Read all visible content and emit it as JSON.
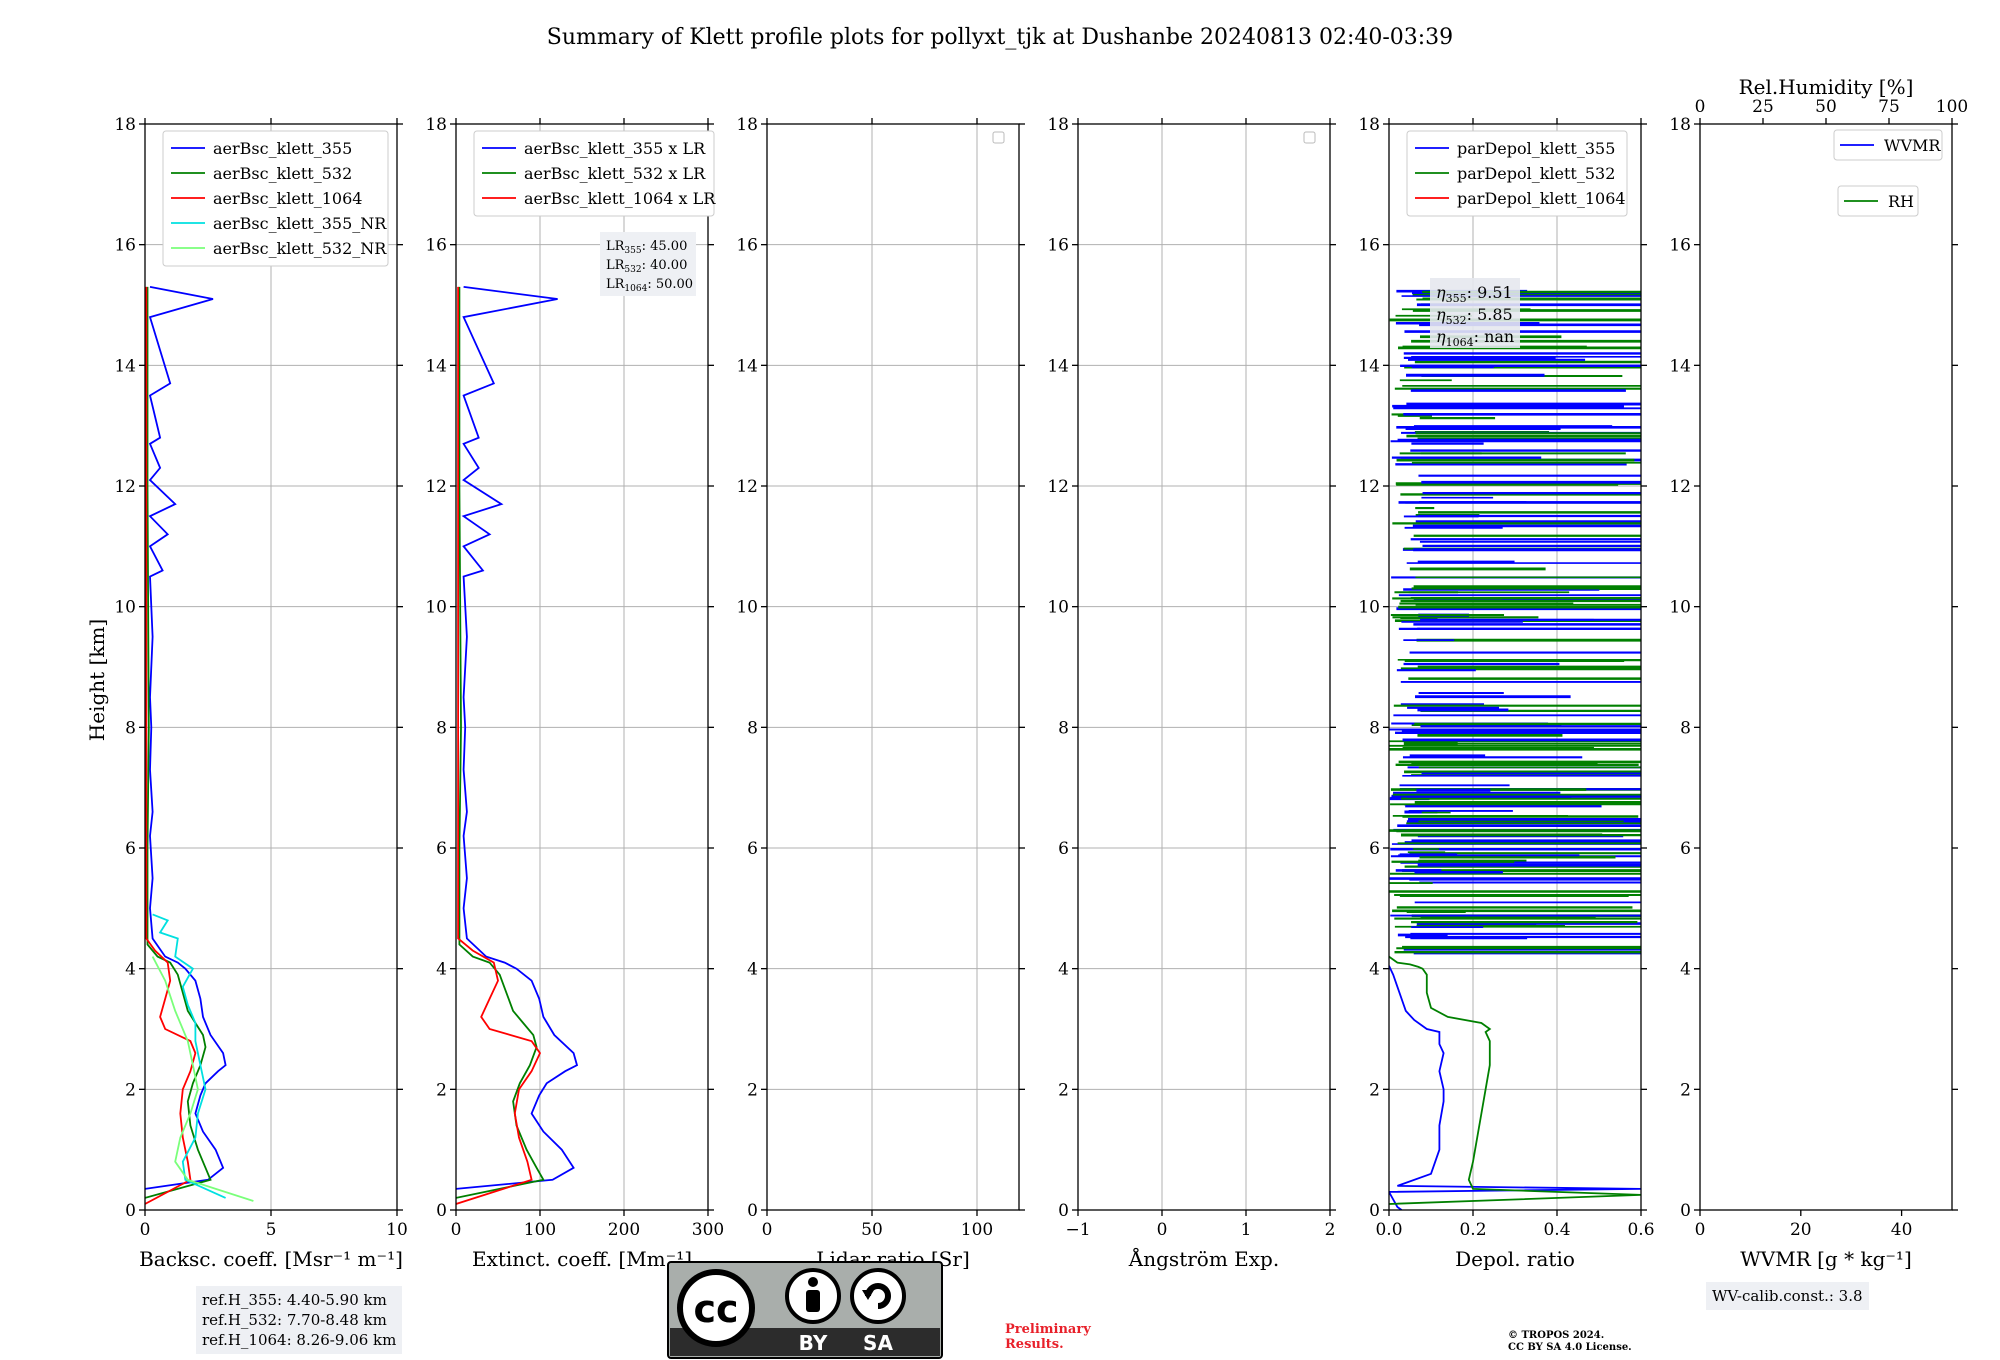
{
  "title": "Summary of Klett profile plots for pollyxt_tjk at Dushanbe 20240813 02:40-03:39",
  "chart_data": [
    {
      "type": "line",
      "xlabel": "Backsc. coeff. [Msr⁻¹ m⁻¹]",
      "ylabel": "Height [km]",
      "xlim": [
        0,
        10
      ],
      "ylim": [
        0,
        18
      ],
      "xticks": [
        "0",
        "5",
        "10"
      ],
      "yticks": [
        "0",
        "2",
        "4",
        "6",
        "8",
        "10",
        "12",
        "14",
        "16",
        "18"
      ],
      "grid": true,
      "legend_position": "top",
      "series": [
        {
          "name": "aerBsc_klett_355",
          "color": "#0000ff",
          "x": [
            0.0,
            2.5,
            3.1,
            2.8,
            2.3,
            2.0,
            2.2,
            2.4,
            2.9,
            3.2,
            3.1,
            2.6,
            2.3,
            2.2,
            2.0,
            1.6,
            1.3,
            0.8,
            0.3,
            0.2,
            0.3,
            0.2,
            0.3,
            0.2,
            0.25,
            0.2,
            0.3,
            0.2,
            0.7,
            0.2,
            0.9,
            0.2,
            1.2,
            0.2,
            0.6,
            0.2,
            0.6,
            0.2,
            1.0,
            0.2,
            2.7,
            0.2
          ],
          "y": [
            0.35,
            0.5,
            0.7,
            1.0,
            1.3,
            1.6,
            1.9,
            2.1,
            2.3,
            2.4,
            2.6,
            2.9,
            3.2,
            3.5,
            3.8,
            4.0,
            4.1,
            4.2,
            4.5,
            5.0,
            5.5,
            6.2,
            6.6,
            7.3,
            8.0,
            8.5,
            9.5,
            10.5,
            10.6,
            11.0,
            11.2,
            11.5,
            11.7,
            12.1,
            12.3,
            12.7,
            12.8,
            13.5,
            13.7,
            14.8,
            15.1,
            15.3
          ]
        },
        {
          "name": "aerBsc_klett_532",
          "color": "#008000",
          "x": [
            0.0,
            2.6,
            2.4,
            2.1,
            1.8,
            1.7,
            1.9,
            2.2,
            2.4,
            2.3,
            2.0,
            1.7,
            1.5,
            1.3,
            1.0,
            0.5,
            0.1,
            0.1,
            0.15,
            0.1,
            0.1
          ],
          "y": [
            0.2,
            0.5,
            0.7,
            1.0,
            1.4,
            1.8,
            2.1,
            2.4,
            2.7,
            2.9,
            3.1,
            3.3,
            3.6,
            3.9,
            4.1,
            4.2,
            4.4,
            6.0,
            8.0,
            12.0,
            15.3
          ]
        },
        {
          "name": "aerBsc_klett_1064",
          "color": "#ff0000",
          "x": [
            0.0,
            1.8,
            1.7,
            1.5,
            1.4,
            1.5,
            1.8,
            2.0,
            1.8,
            0.8,
            0.6,
            0.8,
            1.0,
            0.9,
            0.4,
            0.05,
            0.05,
            0.05
          ],
          "y": [
            0.1,
            0.5,
            0.8,
            1.2,
            1.6,
            2.0,
            2.3,
            2.6,
            2.8,
            3.0,
            3.2,
            3.5,
            3.8,
            4.1,
            4.3,
            4.5,
            10.0,
            15.3
          ]
        },
        {
          "name": "aerBsc_klett_355_NR",
          "color": "#00e0e0",
          "x": [
            3.2,
            1.6,
            1.5,
            2.0,
            2.1,
            2.4,
            2.2,
            2.0,
            2.0,
            1.7,
            1.5,
            1.9,
            1.2,
            1.3,
            0.6,
            0.9,
            0.3
          ],
          "y": [
            0.2,
            0.5,
            0.8,
            1.2,
            1.6,
            2.0,
            2.4,
            2.8,
            3.1,
            3.4,
            3.7,
            4.0,
            4.2,
            4.5,
            4.6,
            4.8,
            4.9
          ]
        },
        {
          "name": "aerBsc_klett_532_NR",
          "color": "#7aff7a",
          "x": [
            4.3,
            1.7,
            1.2,
            1.4,
            1.8,
            2.1,
            1.9,
            1.7,
            1.2,
            0.8,
            0.3
          ],
          "y": [
            0.15,
            0.5,
            0.8,
            1.2,
            1.6,
            2.0,
            2.4,
            2.8,
            3.3,
            3.8,
            4.2
          ]
        }
      ],
      "annotation": [
        "ref.H_355: 4.40-5.90 km",
        "ref.H_532: 7.70-8.48 km",
        "ref.H_1064: 8.26-9.06 km"
      ]
    },
    {
      "type": "line",
      "xlabel": "Extinct. coeff. [Mm⁻¹]",
      "xlim": [
        0,
        300
      ],
      "ylim": [
        0,
        18
      ],
      "xticks": [
        "0",
        "100",
        "200",
        "300"
      ],
      "yticks": [
        "0",
        "2",
        "4",
        "6",
        "8",
        "10",
        "12",
        "14",
        "16",
        "18"
      ],
      "grid": true,
      "legend_position": "top",
      "series": [
        {
          "name": "aerBsc_klett_355 x LR",
          "color": "#0000ff",
          "x": [
            0.0,
            115.0,
            140.0,
            126.0,
            104.0,
            90.0,
            99.0,
            108.0,
            130.0,
            144.0,
            140.0,
            117.0,
            104.0,
            99.0,
            90.0,
            72.0,
            58.0,
            36.0,
            13.0,
            9.0,
            13.0,
            9.0,
            13.0,
            9.0,
            11.0,
            9.0,
            13.0,
            9.0,
            32.0,
            9.0,
            40.0,
            9.0,
            54.0,
            9.0,
            27.0,
            9.0,
            27.0,
            9.0,
            45.0,
            9.0,
            121.0,
            9.0
          ],
          "y": [
            0.35,
            0.5,
            0.7,
            1.0,
            1.3,
            1.6,
            1.9,
            2.1,
            2.3,
            2.4,
            2.6,
            2.9,
            3.2,
            3.5,
            3.8,
            4.0,
            4.1,
            4.2,
            4.5,
            5.0,
            5.5,
            6.2,
            6.6,
            7.3,
            8.0,
            8.5,
            9.5,
            10.5,
            10.6,
            11.0,
            11.2,
            11.5,
            11.7,
            12.1,
            12.3,
            12.7,
            12.8,
            13.5,
            13.7,
            14.8,
            15.1,
            15.3
          ]
        },
        {
          "name": "aerBsc_klett_532 x LR",
          "color": "#008000",
          "x": [
            0.0,
            104.0,
            96.0,
            84.0,
            72.0,
            68.0,
            76.0,
            88.0,
            96.0,
            92.0,
            80.0,
            68.0,
            60.0,
            52.0,
            40.0,
            20.0,
            4.0,
            4.0,
            6.0,
            4.0,
            4.0
          ],
          "y": [
            0.2,
            0.5,
            0.7,
            1.0,
            1.4,
            1.8,
            2.1,
            2.4,
            2.7,
            2.9,
            3.1,
            3.3,
            3.6,
            3.9,
            4.1,
            4.2,
            4.4,
            6.0,
            8.0,
            12.0,
            15.3
          ]
        },
        {
          "name": "aerBsc_klett_1064 x LR",
          "color": "#ff0000",
          "x": [
            0.0,
            90.0,
            85.0,
            75.0,
            70.0,
            75.0,
            90.0,
            100.0,
            90.0,
            40.0,
            30.0,
            40.0,
            50.0,
            45.0,
            20.0,
            2.5,
            2.5,
            2.5
          ],
          "y": [
            0.1,
            0.5,
            0.8,
            1.2,
            1.6,
            2.0,
            2.3,
            2.6,
            2.8,
            3.0,
            3.2,
            3.5,
            3.8,
            4.1,
            4.3,
            4.5,
            10.0,
            15.3
          ]
        }
      ],
      "lr_labels": [
        {
          "base": "LR",
          "sub": "355",
          "value": ": 45.00"
        },
        {
          "base": "LR",
          "sub": "532",
          "value": ": 40.00"
        },
        {
          "base": "LR",
          "sub": "1064",
          "value": ": 50.00"
        }
      ]
    },
    {
      "type": "line",
      "xlabel": "Lidar ratio [Sr]",
      "xlim": [
        0,
        120
      ],
      "ylim": [
        0,
        18
      ],
      "xticks": [
        "0",
        "50",
        "100"
      ],
      "yticks": [
        "0",
        "2",
        "4",
        "6",
        "8",
        "10",
        "12",
        "14",
        "16",
        "18"
      ],
      "grid": true,
      "legend_position": "top-right",
      "series": []
    },
    {
      "type": "line",
      "xlabel": "Ångström Exp.",
      "xlim": [
        -1,
        2
      ],
      "ylim": [
        0,
        18
      ],
      "xticks": [
        "−1",
        "0",
        "1",
        "2"
      ],
      "yticks": [
        "0",
        "2",
        "4",
        "6",
        "8",
        "10",
        "12",
        "14",
        "16",
        "18"
      ],
      "grid": true,
      "legend_position": "top-right",
      "series": []
    },
    {
      "type": "line",
      "xlabel": "Depol. ratio",
      "xlim": [
        0,
        0.6
      ],
      "ylim": [
        0,
        18
      ],
      "xticks": [
        "0.0",
        "0.2",
        "0.4",
        "0.6"
      ],
      "yticks": [
        "0",
        "2",
        "4",
        "6",
        "8",
        "10",
        "12",
        "14",
        "16",
        "18"
      ],
      "grid": true,
      "legend_position": "top",
      "series": [
        {
          "name": "parDepol_klett_355",
          "color": "#0000ff",
          "x": [
            0.03,
            0.02,
            0.0,
            0.6,
            0.02,
            0.1,
            0.12,
            0.12,
            0.13,
            0.13,
            0.12,
            0.13,
            0.12,
            0.12,
            0.12,
            0.09,
            0.06,
            0.04,
            0.02,
            0.01,
            0.0
          ],
          "y": [
            0.0,
            0.05,
            0.3,
            0.35,
            0.4,
            0.6,
            1.0,
            1.4,
            1.8,
            2.0,
            2.3,
            2.6,
            2.75,
            2.85,
            2.95,
            3.0,
            3.15,
            3.3,
            3.7,
            3.9,
            4.05
          ]
        },
        {
          "name": "parDepol_klett_532",
          "color": "#008000",
          "x": [
            0.0,
            0.6,
            0.2,
            0.19,
            0.2,
            0.21,
            0.22,
            0.23,
            0.24,
            0.24,
            0.23,
            0.24,
            0.22,
            0.14,
            0.1,
            0.09,
            0.09,
            0.08,
            0.07,
            0.05,
            0.02,
            0.0
          ],
          "y": [
            0.1,
            0.25,
            0.35,
            0.5,
            0.8,
            1.2,
            1.6,
            2.0,
            2.4,
            2.8,
            2.95,
            3.0,
            3.1,
            3.2,
            3.35,
            3.6,
            3.9,
            4.0,
            4.03,
            4.07,
            4.1,
            4.2
          ]
        },
        {
          "name": "parDepol_klett_1064",
          "color": "#ff0000",
          "x": [],
          "y": []
        }
      ],
      "eta_labels": [
        {
          "base": "η",
          "sub": "355",
          "value": ": 9.51"
        },
        {
          "base": "η",
          "sub": "532",
          "value": ": 5.85"
        },
        {
          "base": "η",
          "sub": "1064",
          "value": ": nan"
        }
      ]
    },
    {
      "type": "line",
      "xlabel": "WVMR [g * kg⁻¹]",
      "top_xlabel": "Rel.Humidity [%]",
      "xlim": [
        0,
        50
      ],
      "ylim": [
        0,
        18
      ],
      "top_xlim": [
        0,
        100
      ],
      "xticks": [
        "0",
        "20",
        "40"
      ],
      "top_xticks": [
        "0",
        "25",
        "50",
        "75",
        "100"
      ],
      "yticks": [
        "0",
        "2",
        "4",
        "6",
        "8",
        "10",
        "12",
        "14",
        "16",
        "18"
      ],
      "grid": false,
      "legend_position": "top-right",
      "series": [
        {
          "name": "WVMR",
          "color": "#0000ff",
          "x": [],
          "y": []
        },
        {
          "name": "RH",
          "color": "#008000",
          "x": [],
          "y": []
        }
      ],
      "annotation": [
        "WV-calib.const.: 3.8"
      ]
    }
  ],
  "license_badge": {
    "left": "BY",
    "right": "SA"
  },
  "preliminary": [
    "Preliminary",
    "Results."
  ],
  "copyright": [
    "© TROPOS 2024.",
    "CC BY SA 4.0 License."
  ]
}
